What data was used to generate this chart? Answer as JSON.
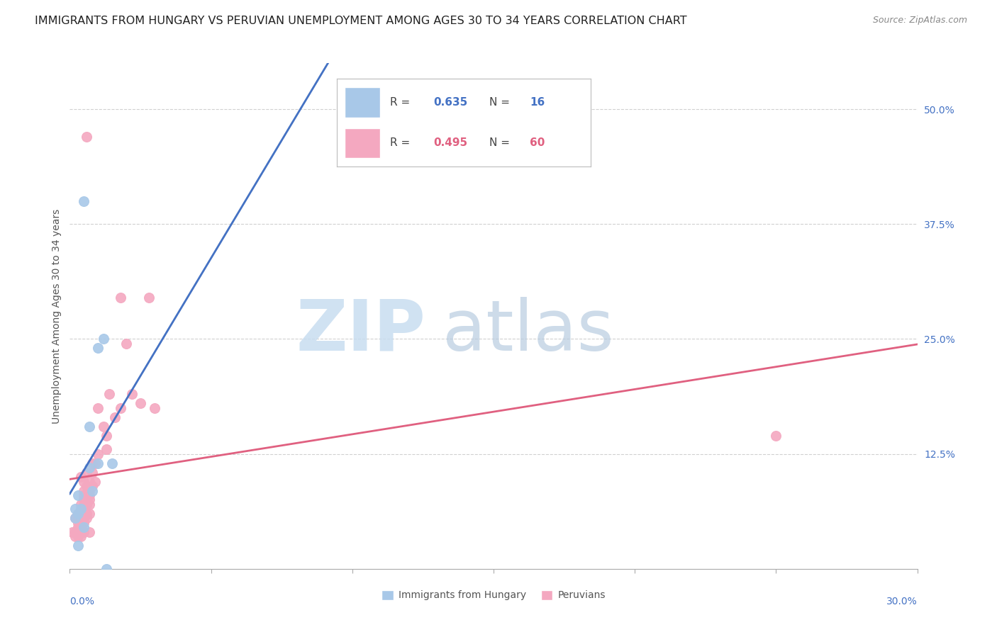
{
  "title": "IMMIGRANTS FROM HUNGARY VS PERUVIAN UNEMPLOYMENT AMONG AGES 30 TO 34 YEARS CORRELATION CHART",
  "source": "Source: ZipAtlas.com",
  "ylabel": "Unemployment Among Ages 30 to 34 years",
  "right_yticks": [
    "50.0%",
    "37.5%",
    "25.0%",
    "12.5%"
  ],
  "right_ytick_vals": [
    0.5,
    0.375,
    0.25,
    0.125
  ],
  "xlim": [
    0.0,
    0.3
  ],
  "ylim": [
    0.0,
    0.55
  ],
  "hungary_color": "#a8c8e8",
  "peru_color": "#f4a8c0",
  "hungary_line_color": "#4472c4",
  "peru_line_color": "#e06080",
  "hungary_scatter": [
    [
      0.005,
      0.4
    ],
    [
      0.01,
      0.24
    ],
    [
      0.012,
      0.25
    ],
    [
      0.007,
      0.155
    ],
    [
      0.01,
      0.115
    ],
    [
      0.015,
      0.115
    ],
    [
      0.007,
      0.11
    ],
    [
      0.008,
      0.085
    ],
    [
      0.003,
      0.08
    ],
    [
      0.004,
      0.065
    ],
    [
      0.003,
      0.06
    ],
    [
      0.002,
      0.055
    ],
    [
      0.005,
      0.045
    ],
    [
      0.003,
      0.025
    ],
    [
      0.002,
      0.065
    ],
    [
      0.013,
      0.0
    ]
  ],
  "peru_scatter": [
    [
      0.006,
      0.47
    ],
    [
      0.028,
      0.295
    ],
    [
      0.018,
      0.295
    ],
    [
      0.02,
      0.245
    ],
    [
      0.03,
      0.175
    ],
    [
      0.025,
      0.18
    ],
    [
      0.022,
      0.19
    ],
    [
      0.018,
      0.175
    ],
    [
      0.016,
      0.165
    ],
    [
      0.014,
      0.19
    ],
    [
      0.012,
      0.155
    ],
    [
      0.013,
      0.145
    ],
    [
      0.013,
      0.13
    ],
    [
      0.01,
      0.175
    ],
    [
      0.01,
      0.125
    ],
    [
      0.009,
      0.095
    ],
    [
      0.009,
      0.115
    ],
    [
      0.008,
      0.115
    ],
    [
      0.008,
      0.105
    ],
    [
      0.008,
      0.09
    ],
    [
      0.007,
      0.095
    ],
    [
      0.007,
      0.085
    ],
    [
      0.007,
      0.08
    ],
    [
      0.007,
      0.07
    ],
    [
      0.007,
      0.075
    ],
    [
      0.007,
      0.06
    ],
    [
      0.007,
      0.04
    ],
    [
      0.006,
      0.105
    ],
    [
      0.006,
      0.09
    ],
    [
      0.006,
      0.075
    ],
    [
      0.006,
      0.07
    ],
    [
      0.006,
      0.06
    ],
    [
      0.006,
      0.055
    ],
    [
      0.005,
      0.095
    ],
    [
      0.005,
      0.085
    ],
    [
      0.005,
      0.08
    ],
    [
      0.005,
      0.075
    ],
    [
      0.005,
      0.07
    ],
    [
      0.005,
      0.06
    ],
    [
      0.005,
      0.055
    ],
    [
      0.005,
      0.05
    ],
    [
      0.005,
      0.04
    ],
    [
      0.004,
      0.1
    ],
    [
      0.004,
      0.07
    ],
    [
      0.004,
      0.06
    ],
    [
      0.004,
      0.055
    ],
    [
      0.004,
      0.045
    ],
    [
      0.004,
      0.04
    ],
    [
      0.004,
      0.035
    ],
    [
      0.003,
      0.06
    ],
    [
      0.003,
      0.055
    ],
    [
      0.003,
      0.05
    ],
    [
      0.003,
      0.045
    ],
    [
      0.003,
      0.04
    ],
    [
      0.003,
      0.035
    ],
    [
      0.002,
      0.055
    ],
    [
      0.002,
      0.04
    ],
    [
      0.002,
      0.035
    ],
    [
      0.001,
      0.04
    ],
    [
      0.25,
      0.145
    ]
  ],
  "legend_hungary_R": "0.635",
  "legend_hungary_N": "16",
  "legend_peru_R": "0.495",
  "legend_peru_N": "60",
  "background_color": "#ffffff",
  "grid_color": "#d0d0d0",
  "title_fontsize": 11.5,
  "source_fontsize": 9,
  "axis_label_fontsize": 10,
  "tick_fontsize": 10,
  "legend_fontsize": 12
}
